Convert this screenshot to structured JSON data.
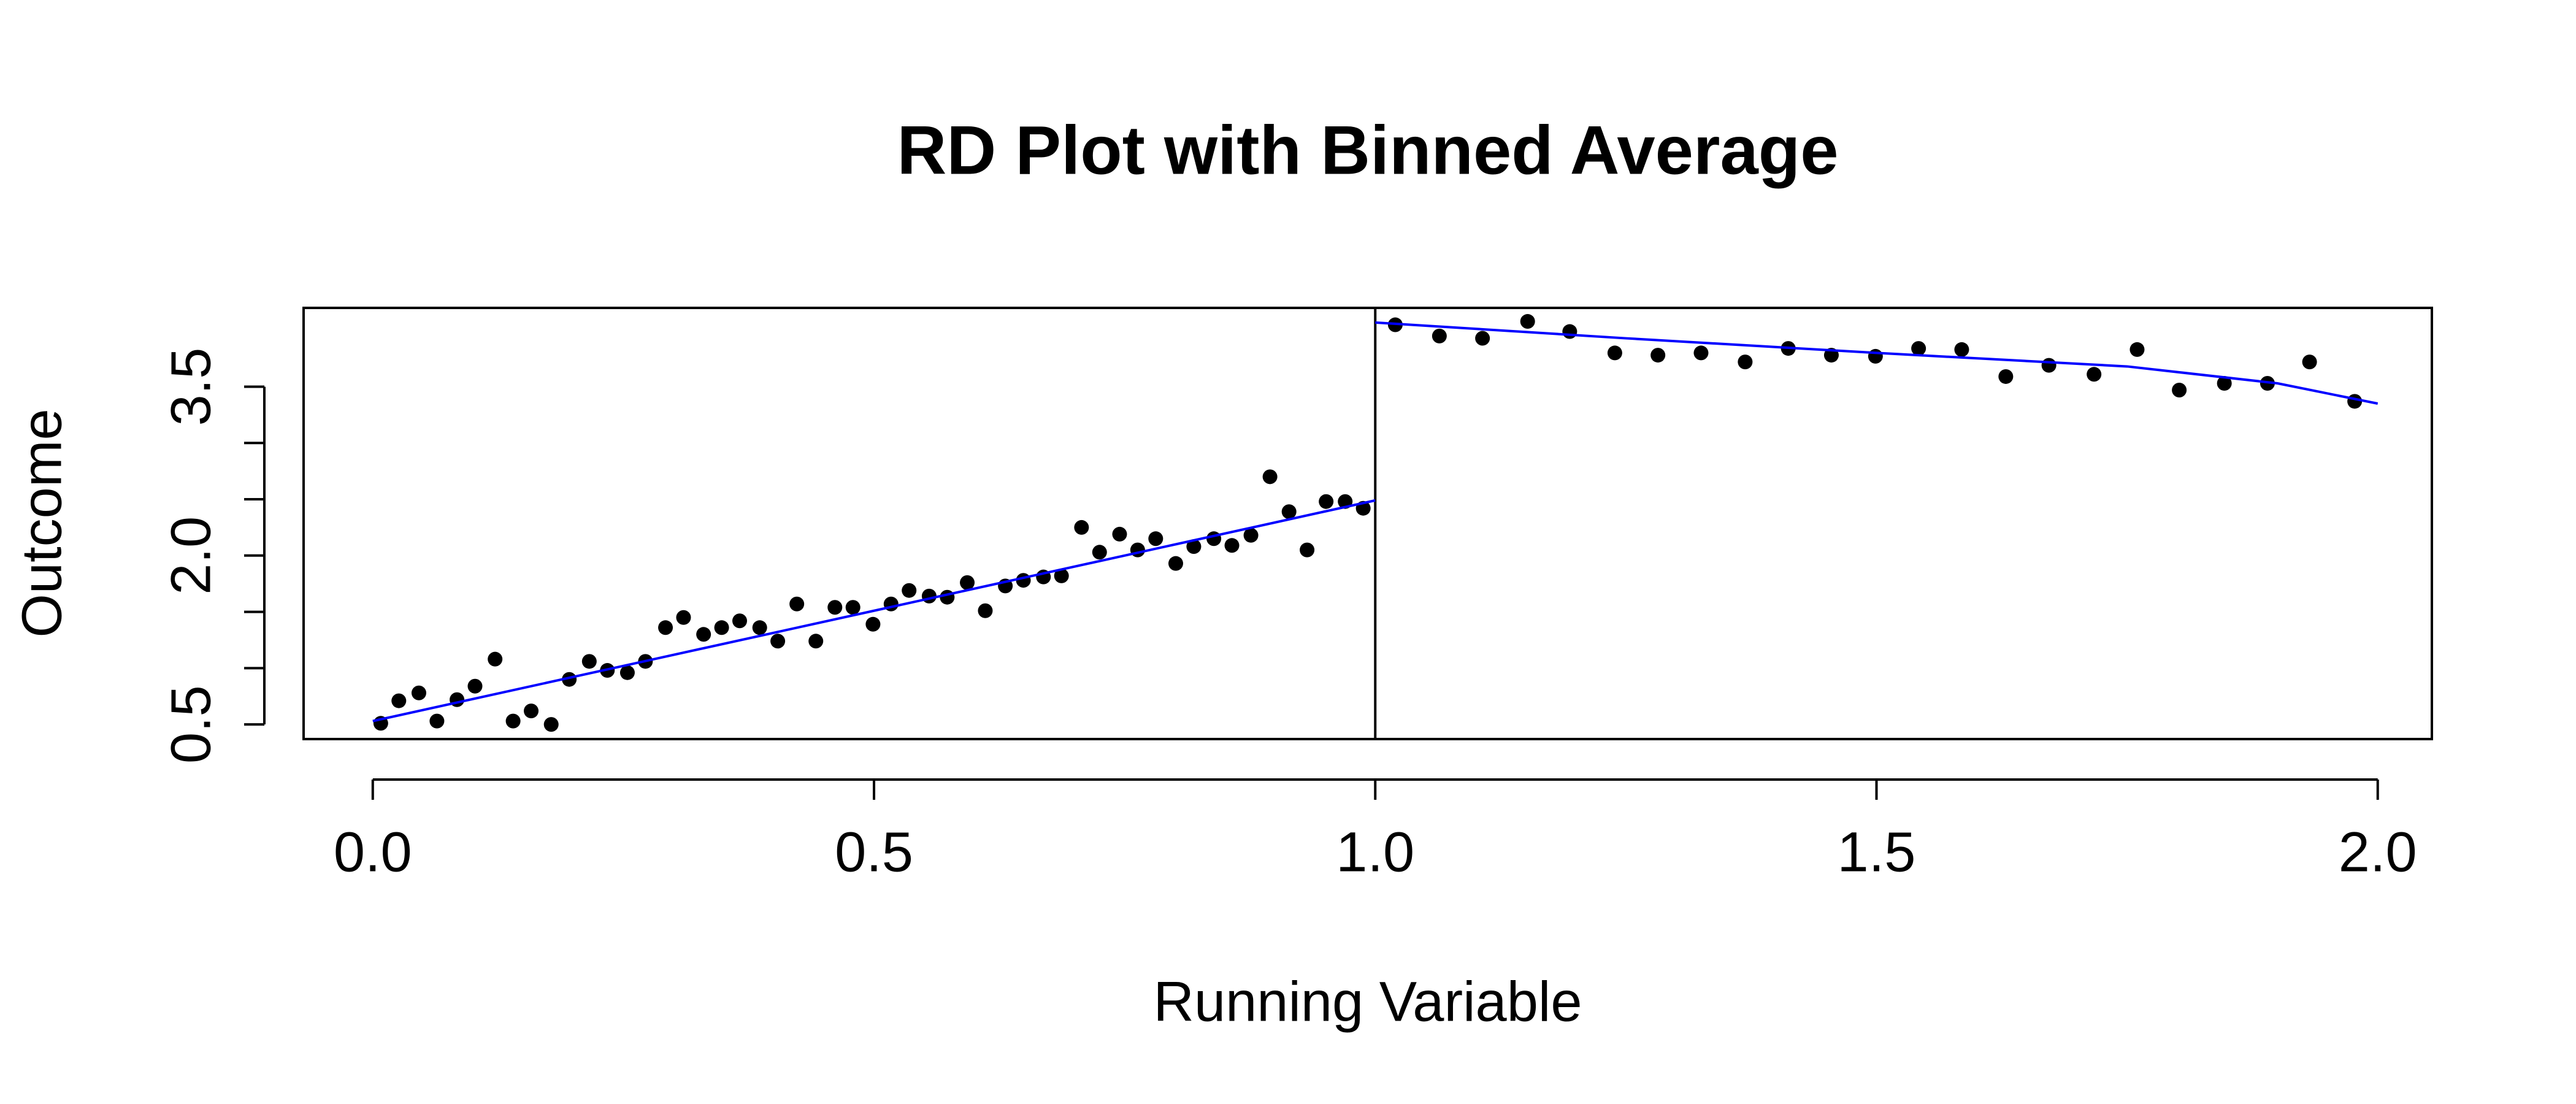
{
  "chart_data": {
    "type": "scatter",
    "title": "RD Plot with Binned Average",
    "x_label": "Running Variable",
    "y_label": "Outcome",
    "xlim": [
      -0.069,
      2.054
    ],
    "ylim": [
      0.37,
      4.2
    ],
    "xticks": [
      {
        "value": 0,
        "label": "0.0"
      },
      0.5,
      {
        "value": 1,
        "label": "1.0"
      },
      1.5,
      {
        "value": 2,
        "label": "2.0"
      }
    ],
    "yticks": [
      0.5,
      {
        "value": 1,
        "label": null
      },
      {
        "value": 1.5,
        "label": null
      },
      {
        "value": 2,
        "label": "2.0"
      },
      {
        "value": 2.5,
        "label": null
      },
      {
        "value": 3,
        "label": null
      },
      3.5
    ],
    "cutoff": 1,
    "series": [
      {
        "color": "#000000",
        "x": [
          0.008,
          0.026,
          0.046,
          0.064,
          0.084,
          0.102,
          0.122,
          0.14,
          0.158,
          0.178,
          0.196,
          0.216,
          0.234,
          0.254,
          0.272,
          0.292,
          0.31,
          0.33,
          0.348,
          0.366,
          0.386,
          0.404,
          0.423,
          0.442,
          0.461,
          0.479,
          0.499,
          0.517,
          0.535,
          0.555,
          0.573,
          0.593,
          0.611,
          0.631,
          0.649,
          0.669,
          0.687,
          0.707,
          0.725,
          0.745,
          0.763,
          0.781,
          0.801,
          0.819,
          0.839,
          0.857,
          0.876,
          0.895,
          0.914,
          0.932,
          0.951,
          0.97,
          0.988
        ],
        "values": [
          0.51,
          0.71,
          0.78,
          0.53,
          0.72,
          0.84,
          1.08,
          0.53,
          0.62,
          0.5,
          0.9,
          1.06,
          0.98,
          0.96,
          1.06,
          1.36,
          1.45,
          1.3,
          1.36,
          1.42,
          1.36,
          1.24,
          1.57,
          1.24,
          1.54,
          1.54,
          1.39,
          1.57,
          1.69,
          1.64,
          1.63,
          1.76,
          1.51,
          1.73,
          1.78,
          1.81,
          1.82,
          2.25,
          2.03,
          2.19,
          2.05,
          2.15,
          1.93,
          2.08,
          2.15,
          2.09,
          2.18,
          2.7,
          2.39,
          2.05,
          2.48,
          2.48,
          2.42
        ]
      },
      {
        "color": "#000000",
        "x": [
          1.02,
          1.064,
          1.107,
          1.152,
          1.194,
          1.239,
          1.282,
          1.325,
          1.369,
          1.412,
          1.455,
          1.499,
          1.542,
          1.585,
          1.629,
          1.672,
          1.717,
          1.76,
          1.802,
          1.847,
          1.89,
          1.932,
          1.977
        ],
        "values": [
          4.05,
          3.95,
          3.93,
          4.08,
          3.99,
          3.8,
          3.78,
          3.8,
          3.72,
          3.84,
          3.78,
          3.77,
          3.84,
          3.83,
          3.59,
          3.69,
          3.61,
          3.83,
          3.47,
          3.53,
          3.53,
          3.72,
          3.37
        ]
      }
    ],
    "fits": [
      {
        "color": "#0000ff",
        "x": [
          0,
          0.25,
          0.5,
          0.75,
          1
        ],
        "values": [
          0.53,
          1.02,
          1.51,
          2.0,
          2.49
        ]
      },
      {
        "color": "#0000ff",
        "x": [
          1,
          1.25,
          1.5,
          1.75,
          1.9,
          2
        ],
        "values": [
          4.07,
          3.93,
          3.8,
          3.68,
          3.53,
          3.35
        ]
      }
    ]
  }
}
